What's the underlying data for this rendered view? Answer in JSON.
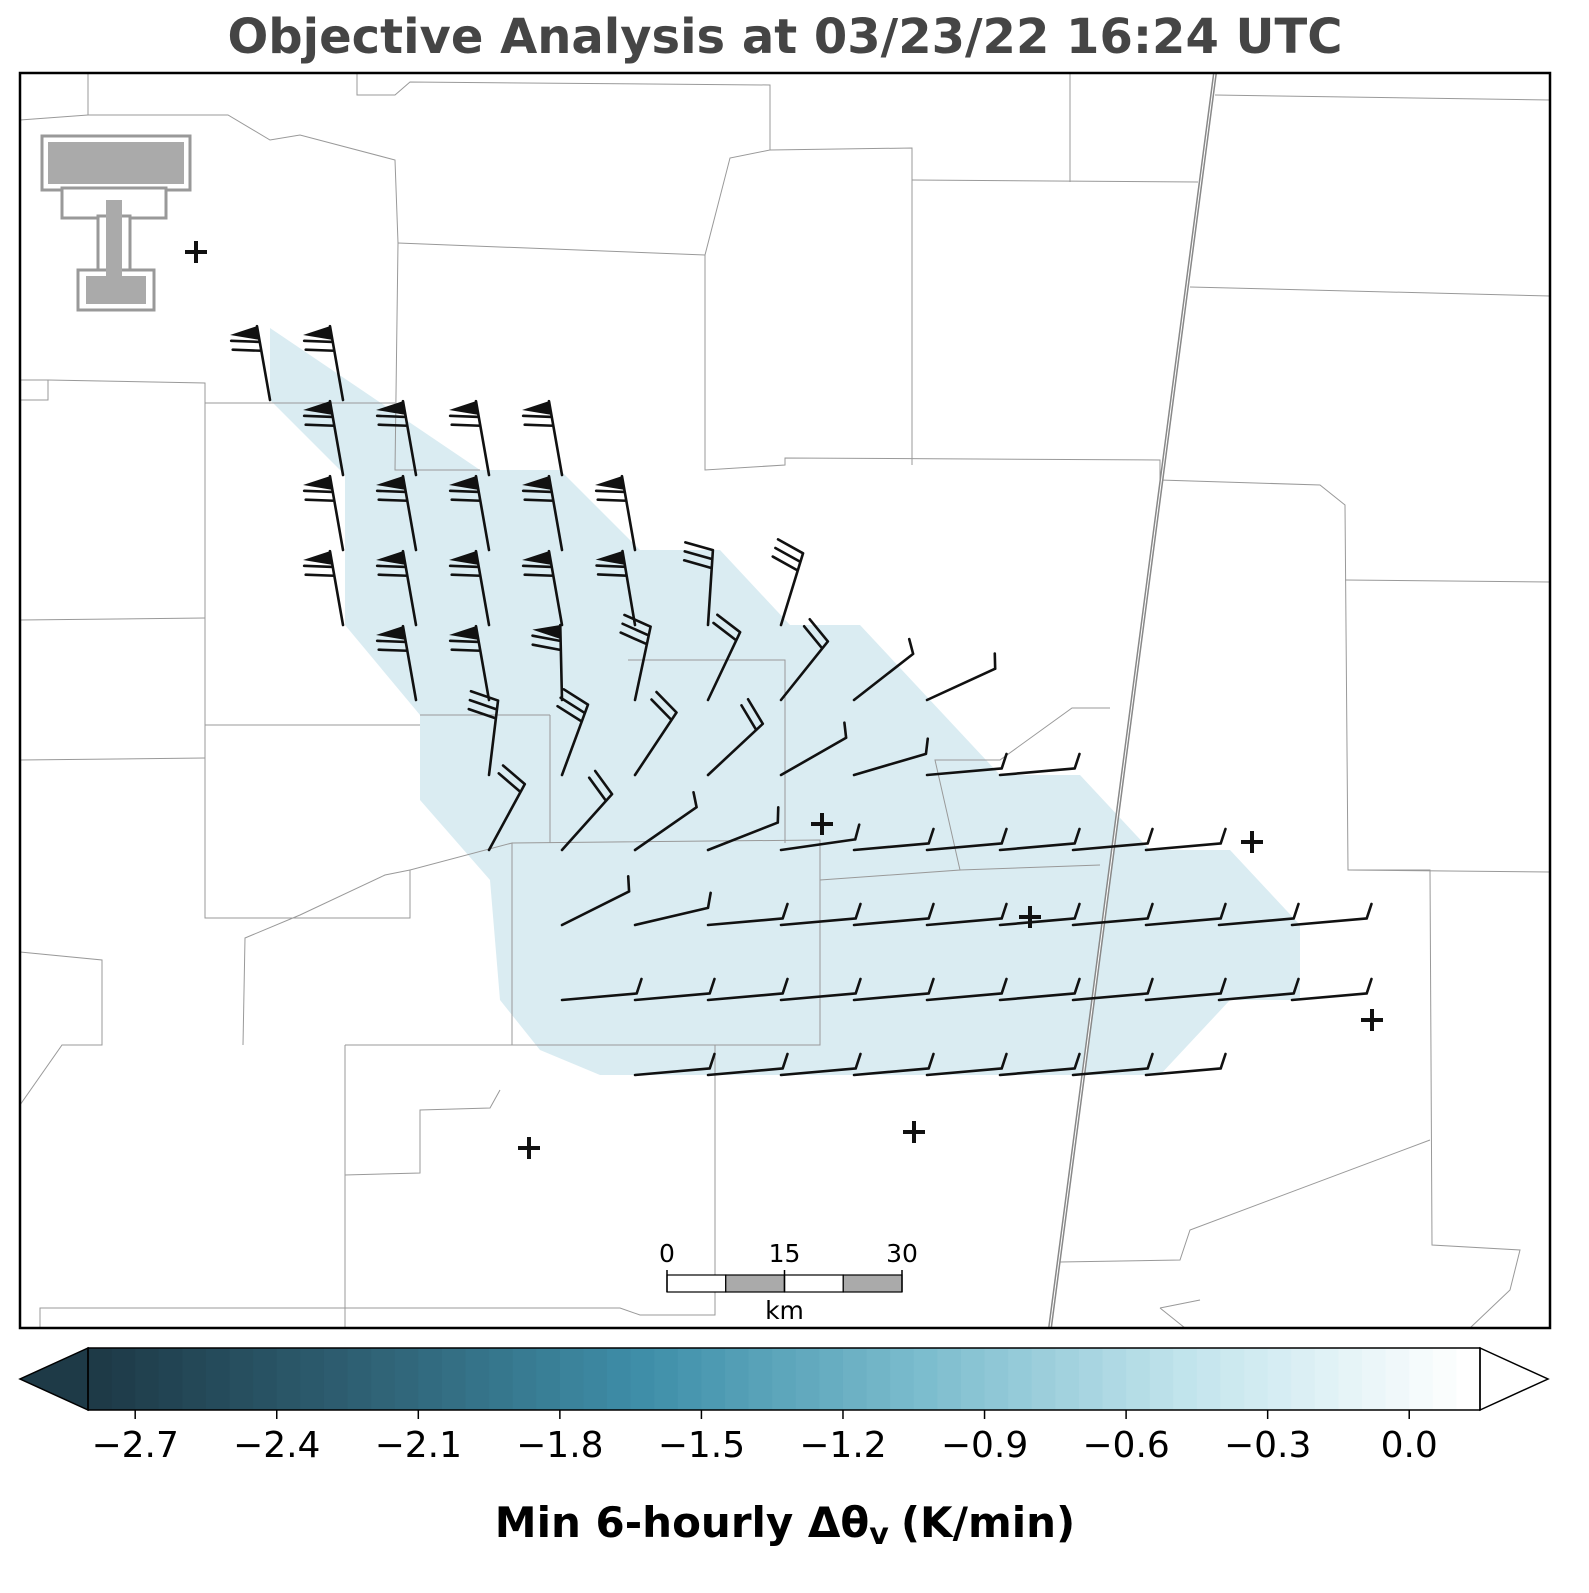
{
  "map": {
    "title": "Objective Analysis at 03/23/22 16:24 UTC",
    "scale_bar": {
      "ticks": [
        0,
        15,
        30
      ],
      "unit": "km"
    },
    "colorbar": {
      "clim": [
        -2.8,
        0.15
      ],
      "colormap": [
        "#1e3a47",
        "#2f6275",
        "#3f8fa9",
        "#7bbccd",
        "#c4e5ed",
        "#ffffff"
      ],
      "ticks": [
        {
          "value": -2.7,
          "label": "−2.7"
        },
        {
          "value": -2.4,
          "label": "−2.4"
        },
        {
          "value": -2.1,
          "label": "−2.1"
        },
        {
          "value": -1.8,
          "label": "−1.8"
        },
        {
          "value": -1.5,
          "label": "−1.5"
        },
        {
          "value": -1.2,
          "label": "−1.2"
        },
        {
          "value": -0.9,
          "label": "−0.9"
        },
        {
          "value": -0.6,
          "label": "−0.6"
        },
        {
          "value": -0.3,
          "label": "−0.3"
        },
        {
          "value": 0,
          "label": "0.0"
        }
      ],
      "label_main": "Min 6-hourly Δθ",
      "label_sub": "v",
      "label_unit": "(K/min)"
    }
  }
}
